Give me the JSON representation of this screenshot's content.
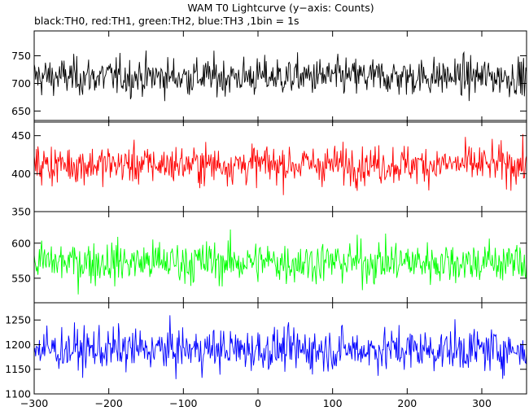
{
  "title": "WAM T0 Lightcurve (y−axis: Counts)",
  "subtitle": "black:TH0, red:TH1, green:TH2, blue:TH3 ,1bin = 1s",
  "chart_data": {
    "type": "line",
    "title": "WAM T0 Lightcurve (y−axis: Counts)",
    "subtitle": "black:TH0, red:TH1, green:TH2, blue:TH3 ,1bin = 1s",
    "x_range": [
      -300,
      360
    ],
    "x_ticks": [
      -300,
      -200,
      -100,
      0,
      100,
      200,
      300
    ],
    "x_tick_labels": [
      "−300",
      "−200",
      "−100",
      "0",
      "100",
      "200",
      "300"
    ],
    "grid": false,
    "series": [
      {
        "name": "TH0",
        "color": "#000000",
        "ylim": [
          630,
          795
        ],
        "y_ticks": [
          650,
          700,
          750
        ],
        "y_tick_labels": [
          "650",
          "700",
          "750"
        ],
        "mean": 712,
        "spread": 27
      },
      {
        "name": "TH1",
        "color": "#ff0000",
        "ylim": [
          350,
          470
        ],
        "y_ticks": [
          350,
          400,
          450
        ],
        "y_tick_labels": [
          "350",
          "400",
          "450"
        ],
        "mean": 412,
        "spread": 20
      },
      {
        "name": "TH2",
        "color": "#00ff00",
        "ylim": [
          515,
          645
        ],
        "y_ticks": [
          550,
          600
        ],
        "y_tick_labels": [
          "550",
          "600"
        ],
        "mean": 573,
        "spread": 24
      },
      {
        "name": "TH3",
        "color": "#0000ff",
        "ylim": [
          1100,
          1285
        ],
        "y_ticks": [
          1100,
          1150,
          1200,
          1250
        ],
        "y_tick_labels": [
          "1100",
          "1150",
          "1200",
          "1250"
        ],
        "mean": 1190,
        "spread": 34
      }
    ]
  }
}
